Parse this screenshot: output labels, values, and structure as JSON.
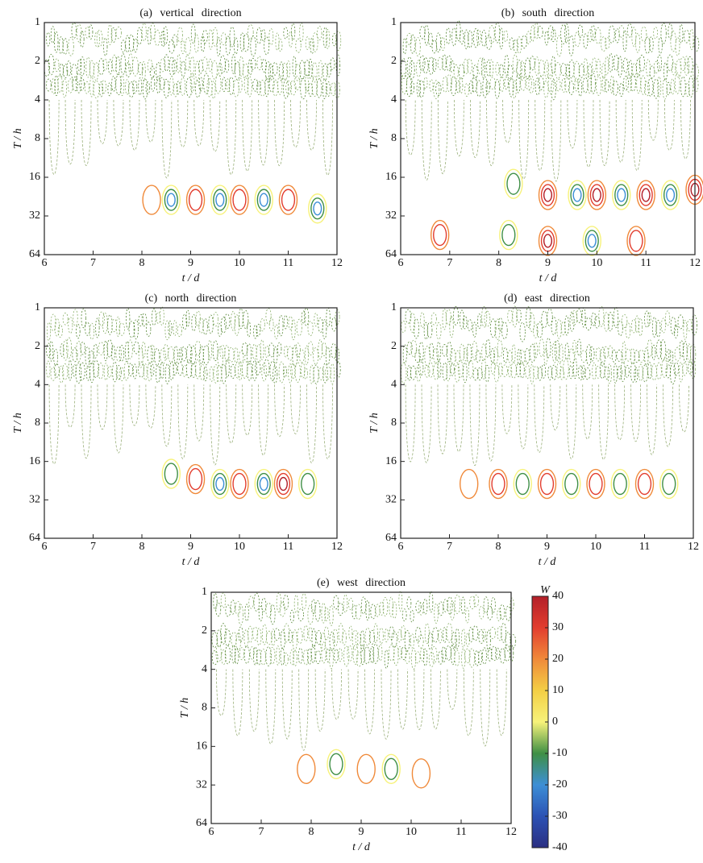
{
  "chart_data": [
    {
      "type": "contour",
      "title": "(a) vertical direction",
      "xlabel": "t / d",
      "ylabel": "T / h",
      "xlim": [
        6,
        12
      ],
      "xticks": [
        6,
        7,
        8,
        9,
        10,
        11,
        12
      ],
      "ylim": [
        1,
        64
      ],
      "yticks": [
        1,
        2,
        4,
        8,
        16,
        32,
        64
      ],
      "yscale": "log",
      "features": [
        {
          "t": 8.2,
          "T": 24,
          "level": 10
        },
        {
          "t": 8.6,
          "T": 24,
          "level": -25
        },
        {
          "t": 9.1,
          "T": 24,
          "level": 20
        },
        {
          "t": 9.6,
          "T": 24,
          "level": -25
        },
        {
          "t": 10.0,
          "T": 24,
          "level": 20
        },
        {
          "t": 10.5,
          "T": 24,
          "level": -25
        },
        {
          "t": 11.0,
          "T": 24,
          "level": 20
        },
        {
          "t": 11.6,
          "T": 28,
          "level": -25
        }
      ]
    },
    {
      "type": "contour",
      "title": "(b) south direction",
      "xlabel": "t / d",
      "ylabel": "T / h",
      "xlim": [
        6,
        12
      ],
      "xticks": [
        6,
        7,
        8,
        9,
        10,
        11,
        12
      ],
      "ylim": [
        1,
        64
      ],
      "yticks": [
        1,
        2,
        4,
        8,
        16,
        32,
        64
      ],
      "yscale": "log",
      "features": [
        {
          "t": 8.3,
          "T": 18,
          "level": -15
        },
        {
          "t": 9.0,
          "T": 22,
          "level": 25
        },
        {
          "t": 9.6,
          "T": 22,
          "level": -30
        },
        {
          "t": 10.0,
          "T": 22,
          "level": 30
        },
        {
          "t": 10.5,
          "T": 22,
          "level": -30
        },
        {
          "t": 11.0,
          "T": 22,
          "level": 25
        },
        {
          "t": 11.5,
          "T": 22,
          "level": -25
        },
        {
          "t": 12.0,
          "T": 20,
          "level": 25
        },
        {
          "t": 6.8,
          "T": 45,
          "level": 20
        },
        {
          "t": 8.2,
          "T": 45,
          "level": -20
        },
        {
          "t": 9.0,
          "T": 50,
          "level": 25
        },
        {
          "t": 9.9,
          "T": 50,
          "level": -25
        },
        {
          "t": 10.8,
          "T": 50,
          "level": 15
        }
      ]
    },
    {
      "type": "contour",
      "title": "(c) north direction",
      "xlabel": "t / d",
      "ylabel": "T / h",
      "xlim": [
        6,
        12
      ],
      "xticks": [
        6,
        7,
        8,
        9,
        10,
        11,
        12
      ],
      "ylim": [
        1,
        64
      ],
      "yticks": [
        1,
        2,
        4,
        8,
        16,
        32,
        64
      ],
      "yscale": "log",
      "features": [
        {
          "t": 8.6,
          "T": 20,
          "level": -20
        },
        {
          "t": 9.1,
          "T": 22,
          "level": 15
        },
        {
          "t": 9.6,
          "T": 24,
          "level": -25
        },
        {
          "t": 10.0,
          "T": 24,
          "level": 20
        },
        {
          "t": 10.5,
          "T": 24,
          "level": -30
        },
        {
          "t": 10.9,
          "T": 24,
          "level": 25
        },
        {
          "t": 11.4,
          "T": 24,
          "level": -20
        }
      ]
    },
    {
      "type": "contour",
      "title": "(d) east direction",
      "xlabel": "t / d",
      "ylabel": "T / h",
      "xlim": [
        6,
        12
      ],
      "xticks": [
        6,
        7,
        8,
        9,
        10,
        11,
        12
      ],
      "ylim": [
        1,
        64
      ],
      "yticks": [
        1,
        2,
        4,
        8,
        16,
        32,
        64
      ],
      "yscale": "log",
      "features": [
        {
          "t": 7.4,
          "T": 24,
          "level": 10
        },
        {
          "t": 8.0,
          "T": 24,
          "level": 20
        },
        {
          "t": 8.5,
          "T": 24,
          "level": -20
        },
        {
          "t": 9.0,
          "T": 24,
          "level": 20
        },
        {
          "t": 9.5,
          "T": 24,
          "level": -15
        },
        {
          "t": 10.0,
          "T": 24,
          "level": 15
        },
        {
          "t": 10.5,
          "T": 24,
          "level": -15
        },
        {
          "t": 11.0,
          "T": 24,
          "level": 15
        },
        {
          "t": 11.5,
          "T": 24,
          "level": -15
        }
      ]
    },
    {
      "type": "contour",
      "title": "(e) west direction",
      "xlabel": "t / d",
      "ylabel": "T / h",
      "xlim": [
        6,
        12
      ],
      "xticks": [
        6,
        7,
        8,
        9,
        10,
        11,
        12
      ],
      "ylim": [
        1,
        64
      ],
      "yticks": [
        1,
        2,
        4,
        8,
        16,
        32,
        64
      ],
      "yscale": "log",
      "features": [
        {
          "t": 7.9,
          "T": 24,
          "level": 10
        },
        {
          "t": 8.5,
          "T": 22,
          "level": -20
        },
        {
          "t": 9.1,
          "T": 24,
          "level": 10
        },
        {
          "t": 9.6,
          "T": 24,
          "level": -20
        },
        {
          "t": 10.2,
          "T": 26,
          "level": 10
        }
      ]
    }
  ],
  "colorbar": {
    "label": "W",
    "lim": [
      -40,
      40
    ],
    "ticks": [
      40,
      30,
      20,
      10,
      0,
      -10,
      -20,
      -30,
      -40
    ],
    "colors": [
      "#b3202a",
      "#e23d2e",
      "#f08a3a",
      "#f3cf45",
      "#f7f27a",
      "#3f8f45",
      "#3d8fd6",
      "#2c52b4",
      "#2b2f82"
    ]
  }
}
